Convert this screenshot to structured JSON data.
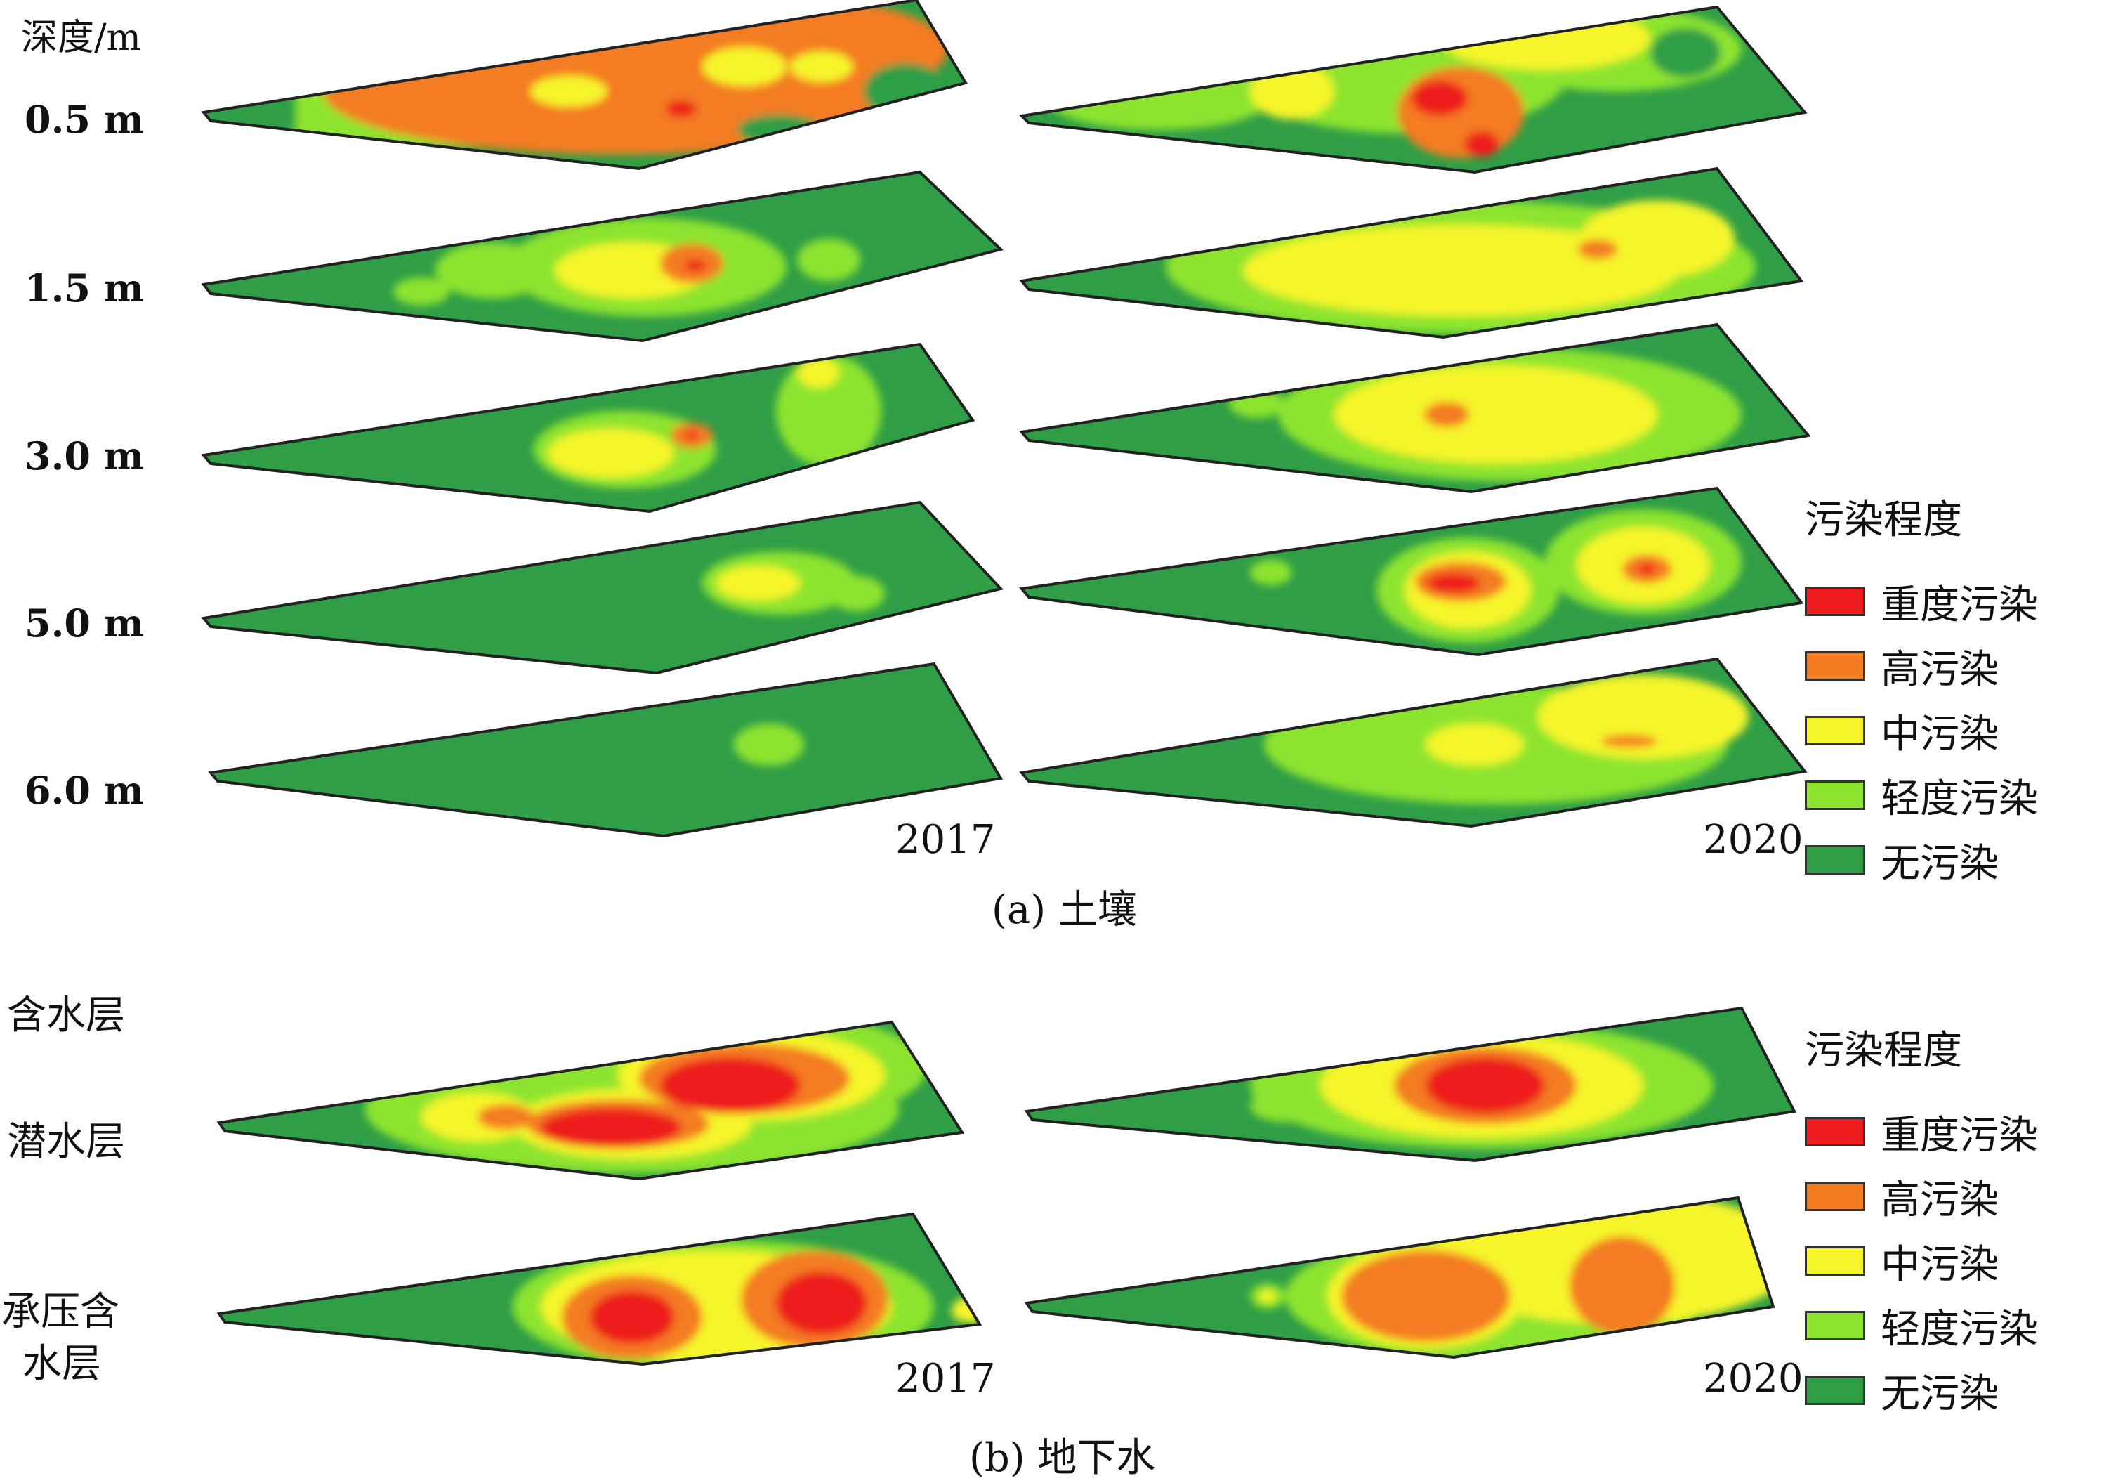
{
  "soil": {
    "depth_header": "深度/m",
    "depths": [
      "0.5 m",
      "1.5 m",
      "3.0 m",
      "5.0 m",
      "6.0 m"
    ],
    "year_left": "2017",
    "year_right": "2020",
    "caption": "(a) 土壤"
  },
  "groundwater": {
    "header": "含水层",
    "layers": [
      "潜水层",
      "承压含",
      "水层"
    ],
    "year_left": "2017",
    "year_right": "2020",
    "caption": "(b) 地下水"
  },
  "legend": {
    "title": "污染程度",
    "items": [
      {
        "label": "重度污染",
        "color": "#ee1c1c"
      },
      {
        "label": "高污染",
        "color": "#f47b20"
      },
      {
        "label": "中污染",
        "color": "#f5f52a"
      },
      {
        "label": "轻度污染",
        "color": "#8de42e"
      },
      {
        "label": "无污染",
        "color": "#2f9e46"
      }
    ]
  }
}
